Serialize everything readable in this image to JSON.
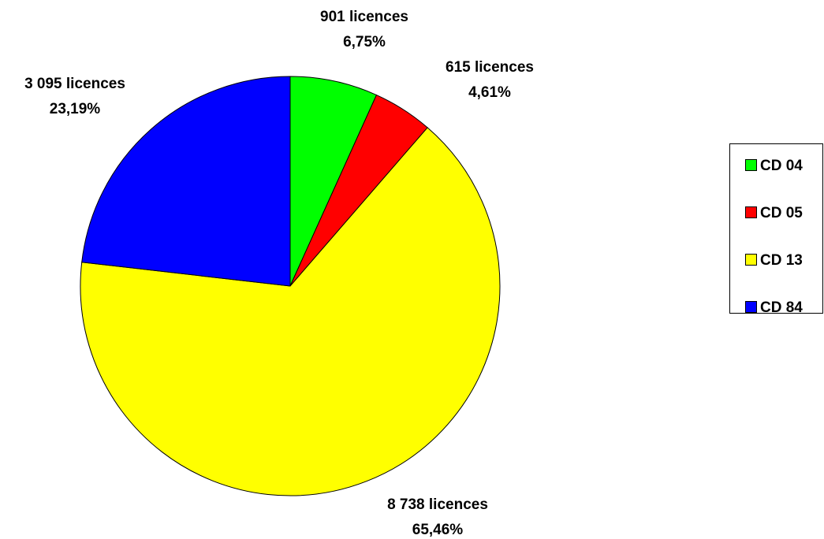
{
  "chart_data": {
    "type": "pie",
    "categories": [
      "CD 04",
      "CD 05",
      "CD 13",
      "CD 84"
    ],
    "values": [
      901,
      615,
      8738,
      3095
    ],
    "value_labels": [
      "901 licences",
      "615 licences",
      "8 738 licences",
      "3 095 licences"
    ],
    "percentages": [
      6.75,
      4.61,
      65.46,
      23.19
    ],
    "percentage_labels": [
      "6,75%",
      "4,61%",
      "65,46%",
      "23,19%"
    ],
    "colors": [
      "#00ff00",
      "#ff0000",
      "#ffff00",
      "#0000ff"
    ],
    "legend": "right"
  }
}
